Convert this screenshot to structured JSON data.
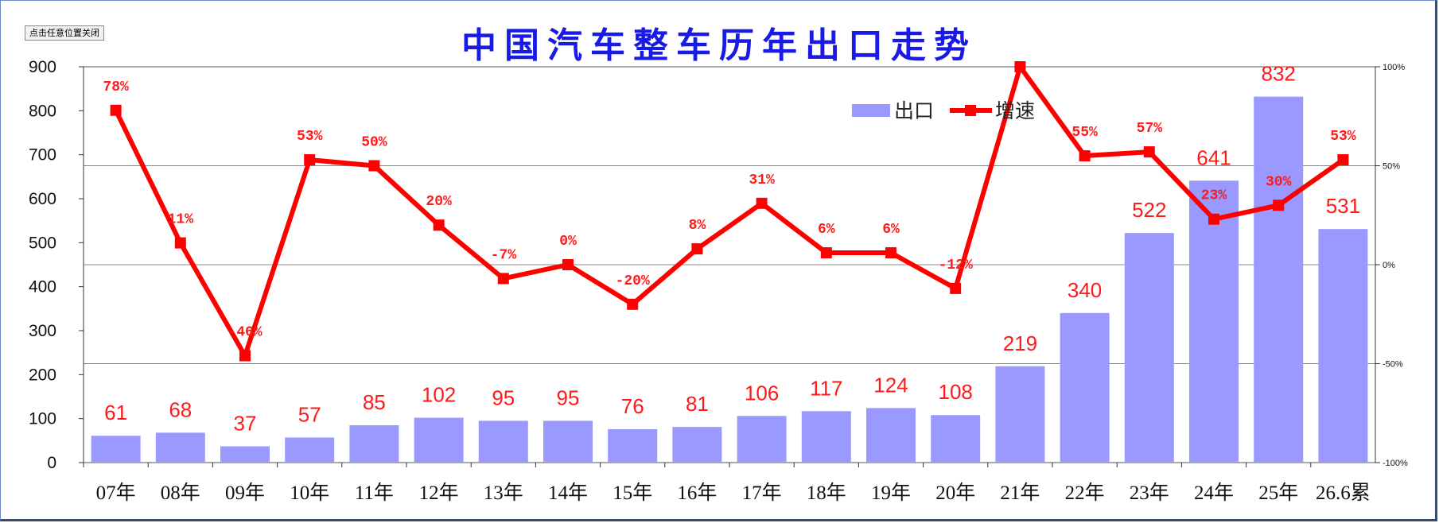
{
  "close_button": {
    "label": "点击任意位置关闭"
  },
  "chart_data": {
    "type": "bar",
    "title": "中国汽车整车历年出口走势",
    "categories": [
      "07年",
      "08年",
      "09年",
      "10年",
      "11年",
      "12年",
      "13年",
      "14年",
      "15年",
      "16年",
      "17年",
      "18年",
      "19年",
      "20年",
      "21年",
      "22年",
      "23年",
      "24年",
      "25年",
      "26.6累"
    ],
    "series": [
      {
        "name": "出口",
        "type": "bar",
        "axis": "left",
        "color": "#9999ff",
        "values": [
          61,
          68,
          37,
          57,
          85,
          102,
          95,
          95,
          76,
          81,
          106,
          117,
          124,
          108,
          219,
          340,
          522,
          641,
          832,
          531
        ]
      },
      {
        "name": "增速",
        "type": "line",
        "axis": "right",
        "color": "#ff0000",
        "values": [
          78,
          11,
          -46,
          53,
          50,
          20,
          -7,
          0,
          -20,
          8,
          31,
          6,
          6,
          -12,
          101,
          55,
          57,
          23,
          30,
          53
        ],
        "labels": [
          "78%",
          "11%",
          "-46%",
          "53%",
          "50%",
          "20%",
          "-7%",
          "0%",
          "-20%",
          "8%",
          "31%",
          "6%",
          "6%",
          "-12%",
          "",
          "55%",
          "57%",
          "23%",
          "30%",
          "53%"
        ]
      }
    ],
    "y_left": {
      "range": [
        0,
        900
      ],
      "ticks": [
        "0",
        "100",
        "200",
        "300",
        "400",
        "500",
        "600",
        "700",
        "800",
        "900"
      ]
    },
    "y_right": {
      "range": [
        -100,
        100
      ],
      "ticks": [
        "-100%",
        "-50%",
        "0%",
        "50%",
        "100%"
      ]
    },
    "grid": "horizontal lines at right-axis 0%, ±50%",
    "legend_position": "top-right"
  }
}
